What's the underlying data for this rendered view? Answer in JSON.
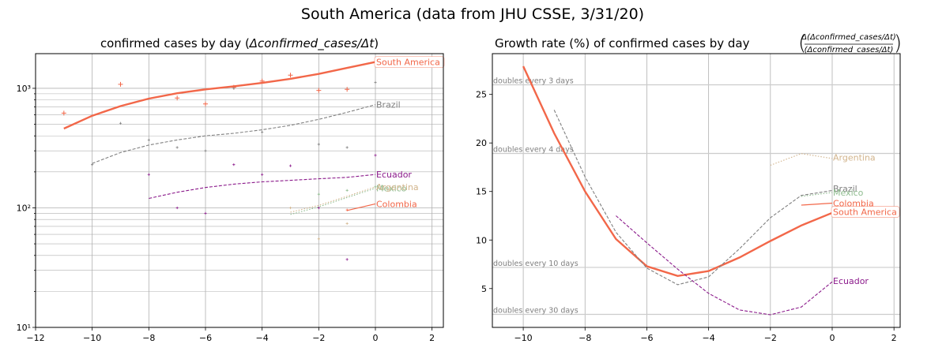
{
  "suptitle": "South America (data from JHU CSSE, 3/31/20)",
  "colors": {
    "south_america": "#f26749",
    "brazil": "#808080",
    "ecuador": "#8b1a8b",
    "mexico": "#8fbc8f",
    "colombia": "#f26749",
    "argentina": "#d2b48c",
    "grid": "#b0b0b0",
    "ref": "#cccccc",
    "ref_text": "#808080"
  },
  "chart_data": [
    {
      "type": "line",
      "title": "confirmed cases by day (Δconfirmed_cases/Δt)",
      "title_plain": "confirmed cases by day (",
      "title_math": "Δconfirmed_cases/Δt",
      "title_close": ")",
      "xlabel": "",
      "ylabel": "",
      "yscale": "log",
      "xlim": [
        -12,
        2.4
      ],
      "ylim": [
        10,
        1950
      ],
      "xticks": [
        -12,
        -10,
        -8,
        -6,
        -4,
        -2,
        0,
        2
      ],
      "xtick_labels": [
        "−12",
        "−10",
        "−8",
        "−6",
        "−4",
        "−2",
        "0",
        "2"
      ],
      "yticks_major": [
        10,
        100,
        1000
      ],
      "ytick_labels": [
        "10¹",
        "10²",
        "10³"
      ],
      "grid": true,
      "series": [
        {
          "name": "South America",
          "label": "South America",
          "color_key": "south_america",
          "style": "solid",
          "label_boxed": true,
          "x": [
            -11,
            -10,
            -9,
            -8,
            -7,
            -6,
            -5,
            -4,
            -3,
            -2,
            -1,
            0
          ],
          "y": [
            460,
            590,
            710,
            820,
            910,
            980,
            1040,
            1110,
            1200,
            1320,
            1480,
            1660
          ],
          "markers": [
            {
              "x": -11,
              "y": 620
            },
            {
              "x": -9,
              "y": 1080
            },
            {
              "x": -7,
              "y": 830
            },
            {
              "x": -6,
              "y": 740
            },
            {
              "x": -5,
              "y": 1020
            },
            {
              "x": -4,
              "y": 1150
            },
            {
              "x": -3,
              "y": 1290
            },
            {
              "x": -2,
              "y": 960
            },
            {
              "x": -1,
              "y": 980
            }
          ]
        },
        {
          "name": "Brazil",
          "label": "Brazil",
          "color_key": "brazil",
          "style": "dashed",
          "label_boxed": false,
          "x": [
            -10,
            -9,
            -8,
            -7,
            -6,
            -5,
            -4,
            -3,
            -2,
            -1,
            0
          ],
          "y": [
            235,
            290,
            335,
            370,
            400,
            420,
            450,
            490,
            550,
            630,
            730
          ],
          "markers": [
            {
              "x": -10,
              "y": 230
            },
            {
              "x": -9,
              "y": 510
            },
            {
              "x": -8,
              "y": 370
            },
            {
              "x": -7,
              "y": 320
            },
            {
              "x": -6,
              "y": 300
            },
            {
              "x": -5,
              "y": 1000
            },
            {
              "x": -4,
              "y": 430
            },
            {
              "x": -2,
              "y": 340
            },
            {
              "x": -1,
              "y": 320
            },
            {
              "x": 0,
              "y": 1120
            }
          ]
        },
        {
          "name": "Ecuador",
          "label": "Ecuador",
          "color_key": "ecuador",
          "style": "dashed",
          "label_boxed": false,
          "x": [
            -8,
            -7,
            -6,
            -5,
            -4,
            -3,
            -2,
            -1,
            0
          ],
          "y": [
            120,
            135,
            148,
            158,
            165,
            170,
            175,
            180,
            190
          ],
          "markers": [
            {
              "x": -8,
              "y": 190
            },
            {
              "x": -7,
              "y": 100
            },
            {
              "x": -6,
              "y": 90
            },
            {
              "x": -5,
              "y": 230
            },
            {
              "x": -4,
              "y": 190
            },
            {
              "x": -3,
              "y": 225
            },
            {
              "x": -2,
              "y": 100
            },
            {
              "x": -1,
              "y": 37
            },
            {
              "x": 0,
              "y": 275
            }
          ]
        },
        {
          "name": "Mexico",
          "label": "Mexico",
          "color_key": "mexico",
          "style": "dotted",
          "label_boxed": false,
          "x": [
            -3,
            -2,
            -1,
            0
          ],
          "y": [
            88,
            102,
            122,
            146
          ],
          "markers": [
            {
              "x": -2,
              "y": 130
            },
            {
              "x": -1,
              "y": 140
            },
            {
              "x": 0,
              "y": 150
            }
          ]
        },
        {
          "name": "Argentina",
          "label": "Argentina",
          "color_key": "argentina",
          "style": "dotted",
          "label_boxed": false,
          "x": [
            -3,
            -2,
            -1,
            0
          ],
          "y": [
            92,
            105,
            125,
            150
          ],
          "markers": [
            {
              "x": -3,
              "y": 100
            },
            {
              "x": -1,
              "y": 74
            },
            {
              "x": -2,
              "y": 55
            }
          ]
        },
        {
          "name": "Colombia",
          "label": "Colombia",
          "color_key": "colombia",
          "style": "solid-thin",
          "label_boxed": false,
          "x": [
            -1,
            0
          ],
          "y": [
            95,
            108
          ],
          "markers": [
            {
              "x": -1,
              "y": 96
            }
          ]
        }
      ]
    },
    {
      "type": "line",
      "title": "Growth rate (%) of confirmed cases by day",
      "title_plain": "Growth rate (%) of confirmed cases by day",
      "frac_num": "Δ(Δconfirmed_cases/Δt)",
      "frac_den": "(Δconfirmed_cases/Δt)",
      "xlabel": "",
      "ylabel": "",
      "yscale": "linear",
      "xlim": [
        -11,
        2.2
      ],
      "ylim": [
        1,
        29.2
      ],
      "xticks": [
        -10,
        -8,
        -6,
        -4,
        -2,
        0,
        2
      ],
      "xtick_labels": [
        "−10",
        "−8",
        "−6",
        "−4",
        "−2",
        "0",
        "2"
      ],
      "yticks": [
        5,
        10,
        15,
        20,
        25
      ],
      "ytick_labels": [
        "5",
        "10",
        "15",
        "20",
        "25"
      ],
      "grid": true,
      "reference_lines": [
        {
          "label": "doubles every 3 days",
          "y": 25.99
        },
        {
          "label": "doubles every 4 days",
          "y": 18.92
        },
        {
          "label": "doubles every 10 days",
          "y": 7.18
        },
        {
          "label": "doubles every 30 days",
          "y": 2.34
        }
      ],
      "series": [
        {
          "name": "South America",
          "label": "South America",
          "color_key": "south_america",
          "style": "solid",
          "label_boxed": true,
          "label_y": 12.9,
          "x": [
            -10,
            -9,
            -8,
            -7,
            -6,
            -5,
            -4,
            -3,
            -2,
            -1,
            0
          ],
          "y": [
            27.9,
            21.0,
            15.0,
            10.1,
            7.3,
            6.3,
            6.8,
            8.2,
            9.9,
            11.5,
            12.8
          ]
        },
        {
          "name": "Brazil",
          "label": "Brazil",
          "color_key": "brazil",
          "style": "dashed",
          "label_boxed": false,
          "label_y": 15.3,
          "x": [
            -9,
            -8,
            -7,
            -6,
            -5,
            -4,
            -3,
            -2,
            -1,
            0
          ],
          "y": [
            23.4,
            16.5,
            10.8,
            7.1,
            5.4,
            6.2,
            9.1,
            12.3,
            14.6,
            15.1
          ]
        },
        {
          "name": "Mexico",
          "label": "Mexico",
          "color_key": "mexico",
          "style": "dotted",
          "label_boxed": false,
          "label_y": 14.9,
          "x": [
            -1,
            0
          ],
          "y": [
            14.5,
            14.9
          ]
        },
        {
          "name": "Colombia",
          "label": "Colombia",
          "color_key": "colombia",
          "style": "solid-thin",
          "label_boxed": false,
          "label_y": 13.8,
          "x": [
            -1,
            0
          ],
          "y": [
            13.6,
            13.8
          ]
        },
        {
          "name": "Argentina",
          "label": "Argentina",
          "color_key": "argentina",
          "style": "dotted",
          "label_boxed": false,
          "label_y": 18.5,
          "x": [
            -2,
            -1,
            0
          ],
          "y": [
            17.7,
            18.9,
            18.4
          ]
        },
        {
          "name": "Ecuador",
          "label": "Ecuador",
          "color_key": "ecuador",
          "style": "dashed",
          "label_boxed": false,
          "label_y": 5.8,
          "x": [
            -7,
            -6,
            -5,
            -4,
            -3,
            -2,
            -1,
            0
          ],
          "y": [
            12.5,
            9.7,
            7.0,
            4.5,
            2.8,
            2.3,
            3.1,
            5.7
          ]
        }
      ]
    }
  ]
}
